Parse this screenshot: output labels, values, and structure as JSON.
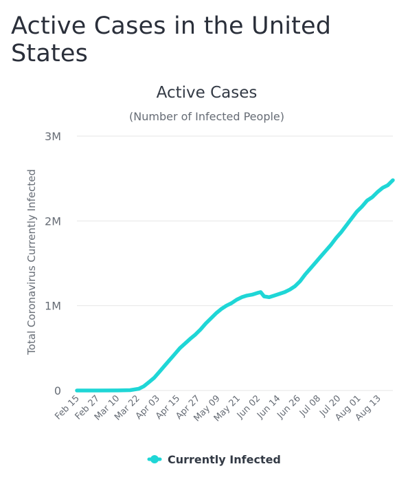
{
  "page": {
    "heading": "Active Cases in the United States"
  },
  "colors": {
    "series": "#1fd6d6",
    "grid": "#e6e6e6",
    "text": "#666c75"
  },
  "chart_data": {
    "type": "line",
    "title": "Active Cases",
    "subtitle": "(Number of Infected People)",
    "xlabel": "",
    "ylabel": "Total Coronavirus Currently Infected",
    "x_tick_labels": [
      "Feb 15",
      "Feb 27",
      "Mar 10",
      "Mar 22",
      "Apr 03",
      "Apr 15",
      "Apr 27",
      "May 09",
      "May 21",
      "Jun 02",
      "Jun 14",
      "Jun 26",
      "Jul 08",
      "Jul 20",
      "Aug 01",
      "Aug 13"
    ],
    "y_tick_labels": [
      "0",
      "1M",
      "2M",
      "3M"
    ],
    "y_ticks": [
      0,
      1000000,
      2000000,
      3000000
    ],
    "ylim": [
      0,
      3000000
    ],
    "x_range": [
      "2020-02-15",
      "2020-08-17"
    ],
    "grid": true,
    "legend": "bottom",
    "series": [
      {
        "name": "Currently Infected",
        "points": [
          [
            "2020-02-15",
            0
          ],
          [
            "2020-02-27",
            0
          ],
          [
            "2020-03-10",
            1000
          ],
          [
            "2020-03-17",
            4000
          ],
          [
            "2020-03-22",
            20000
          ],
          [
            "2020-03-25",
            50000
          ],
          [
            "2020-03-28",
            100000
          ],
          [
            "2020-03-31",
            150000
          ],
          [
            "2020-04-03",
            220000
          ],
          [
            "2020-04-06",
            290000
          ],
          [
            "2020-04-09",
            360000
          ],
          [
            "2020-04-12",
            430000
          ],
          [
            "2020-04-15",
            500000
          ],
          [
            "2020-04-18",
            555000
          ],
          [
            "2020-04-21",
            610000
          ],
          [
            "2020-04-24",
            660000
          ],
          [
            "2020-04-27",
            720000
          ],
          [
            "2020-04-30",
            790000
          ],
          [
            "2020-05-03",
            850000
          ],
          [
            "2020-05-06",
            910000
          ],
          [
            "2020-05-09",
            960000
          ],
          [
            "2020-05-12",
            1000000
          ],
          [
            "2020-05-15",
            1030000
          ],
          [
            "2020-05-18",
            1070000
          ],
          [
            "2020-05-21",
            1100000
          ],
          [
            "2020-05-24",
            1120000
          ],
          [
            "2020-05-27",
            1130000
          ],
          [
            "2020-05-30",
            1150000
          ],
          [
            "2020-06-01",
            1160000
          ],
          [
            "2020-06-03",
            1110000
          ],
          [
            "2020-06-06",
            1100000
          ],
          [
            "2020-06-09",
            1120000
          ],
          [
            "2020-06-12",
            1140000
          ],
          [
            "2020-06-15",
            1160000
          ],
          [
            "2020-06-18",
            1190000
          ],
          [
            "2020-06-21",
            1230000
          ],
          [
            "2020-06-24",
            1290000
          ],
          [
            "2020-06-27",
            1370000
          ],
          [
            "2020-06-30",
            1440000
          ],
          [
            "2020-07-03",
            1510000
          ],
          [
            "2020-07-06",
            1580000
          ],
          [
            "2020-07-09",
            1650000
          ],
          [
            "2020-07-12",
            1720000
          ],
          [
            "2020-07-15",
            1800000
          ],
          [
            "2020-07-18",
            1870000
          ],
          [
            "2020-07-21",
            1950000
          ],
          [
            "2020-07-24",
            2030000
          ],
          [
            "2020-07-27",
            2110000
          ],
          [
            "2020-07-30",
            2170000
          ],
          [
            "2020-08-02",
            2240000
          ],
          [
            "2020-08-05",
            2280000
          ],
          [
            "2020-08-08",
            2340000
          ],
          [
            "2020-08-11",
            2390000
          ],
          [
            "2020-08-14",
            2420000
          ],
          [
            "2020-08-17",
            2480000
          ]
        ]
      }
    ]
  }
}
